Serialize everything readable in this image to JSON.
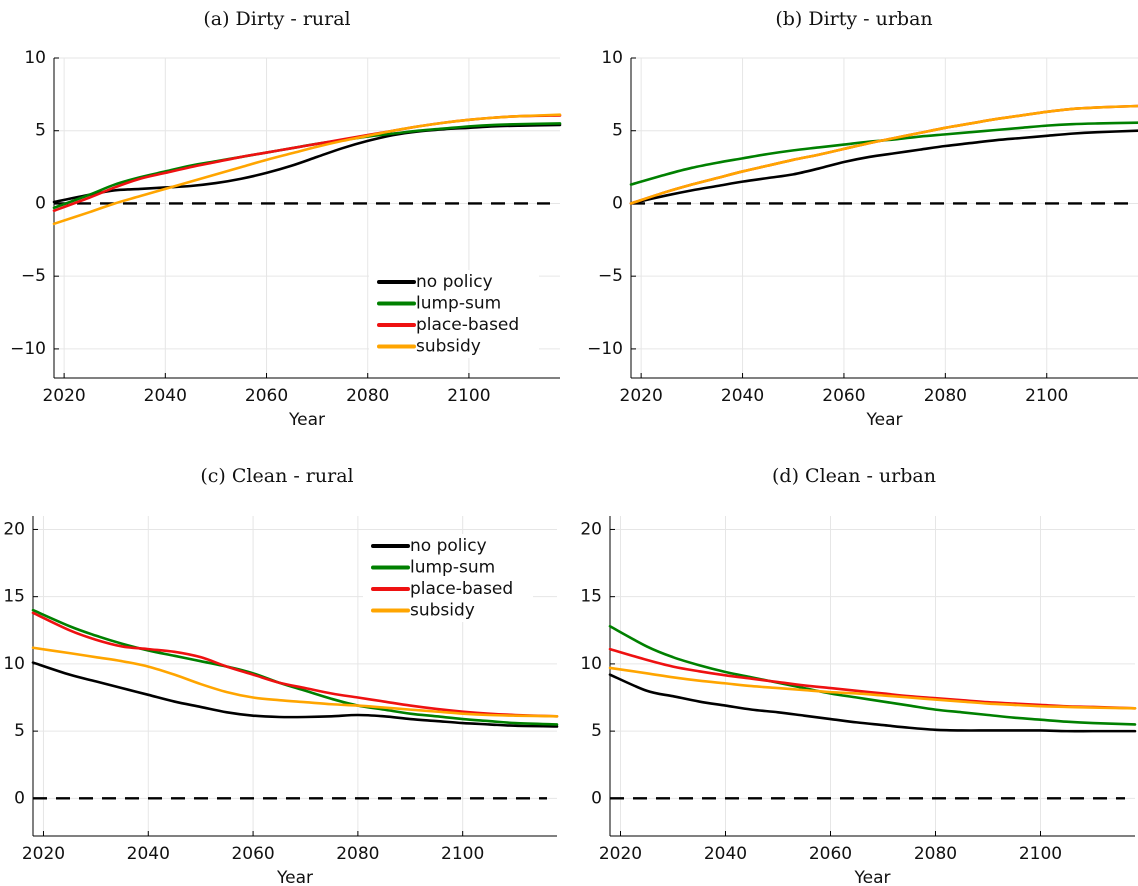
{
  "colors": {
    "no_policy": "#000000",
    "lump_sum": "#008000",
    "place_based": "#ee1111",
    "subsidy": "#ffa500"
  },
  "chart_data": [
    {
      "type": "line",
      "title": "(a) Dirty - rural",
      "xlabel": "Year",
      "ylabel": "",
      "xlim": [
        2018,
        2118
      ],
      "ylim": [
        -12,
        10
      ],
      "xticks": [
        2020,
        2040,
        2060,
        2080,
        2100
      ],
      "yticks": [
        -10,
        -5,
        0,
        5,
        10
      ],
      "grid": true,
      "legend": {
        "placement": "bottom-right",
        "entries": [
          "no policy",
          "lump-sum",
          "place-based",
          "subsidy"
        ]
      },
      "reference_line": {
        "y": 0,
        "style": "dashed"
      },
      "x": [
        2018,
        2025,
        2030,
        2035,
        2040,
        2045,
        2050,
        2055,
        2060,
        2065,
        2070,
        2075,
        2080,
        2085,
        2090,
        2095,
        2100,
        2105,
        2110,
        2118
      ],
      "series": [
        {
          "name": "no policy",
          "values": [
            0.1,
            0.6,
            0.9,
            1.0,
            1.1,
            1.2,
            1.4,
            1.7,
            2.1,
            2.6,
            3.2,
            3.8,
            4.3,
            4.7,
            4.95,
            5.1,
            5.2,
            5.3,
            5.35,
            5.4
          ]
        },
        {
          "name": "lump-sum",
          "values": [
            -0.3,
            0.6,
            1.3,
            1.8,
            2.2,
            2.6,
            2.9,
            3.2,
            3.5,
            3.8,
            4.1,
            4.35,
            4.6,
            4.8,
            5.0,
            5.15,
            5.3,
            5.4,
            5.45,
            5.5
          ]
        },
        {
          "name": "place-based",
          "values": [
            -0.5,
            0.4,
            1.1,
            1.7,
            2.1,
            2.5,
            2.85,
            3.2,
            3.5,
            3.8,
            4.1,
            4.4,
            4.7,
            5.0,
            5.3,
            5.55,
            5.75,
            5.9,
            6.0,
            6.05
          ]
        },
        {
          "name": "subsidy",
          "values": [
            -1.4,
            -0.6,
            0.0,
            0.5,
            1.0,
            1.5,
            2.0,
            2.5,
            3.0,
            3.45,
            3.9,
            4.3,
            4.65,
            5.0,
            5.3,
            5.55,
            5.75,
            5.9,
            6.0,
            6.1
          ]
        }
      ]
    },
    {
      "type": "line",
      "title": "(b) Dirty - urban",
      "xlabel": "Year",
      "ylabel": "",
      "xlim": [
        2018,
        2118
      ],
      "ylim": [
        -12,
        10
      ],
      "xticks": [
        2020,
        2040,
        2060,
        2080,
        2100
      ],
      "yticks": [
        -10,
        -5,
        0,
        5,
        10
      ],
      "grid": true,
      "legend": null,
      "reference_line": {
        "y": 0,
        "style": "dashed"
      },
      "x": [
        2018,
        2025,
        2030,
        2035,
        2040,
        2045,
        2050,
        2055,
        2060,
        2065,
        2070,
        2075,
        2080,
        2085,
        2090,
        2095,
        2100,
        2105,
        2110,
        2118
      ],
      "series": [
        {
          "name": "no policy",
          "values": [
            0.0,
            0.55,
            0.9,
            1.2,
            1.5,
            1.75,
            2.0,
            2.4,
            2.85,
            3.2,
            3.45,
            3.7,
            3.95,
            4.15,
            4.35,
            4.5,
            4.65,
            4.8,
            4.9,
            5.0
          ]
        },
        {
          "name": "lump-sum",
          "values": [
            1.3,
            2.0,
            2.45,
            2.8,
            3.1,
            3.4,
            3.65,
            3.85,
            4.05,
            4.25,
            4.4,
            4.6,
            4.75,
            4.9,
            5.05,
            5.2,
            5.35,
            5.45,
            5.5,
            5.55
          ]
        },
        {
          "name": "place-based",
          "values": [
            0.0,
            0.8,
            1.3,
            1.75,
            2.2,
            2.6,
            3.0,
            3.35,
            3.75,
            4.15,
            4.5,
            4.85,
            5.2,
            5.5,
            5.8,
            6.05,
            6.3,
            6.5,
            6.6,
            6.7
          ]
        },
        {
          "name": "subsidy",
          "values": [
            0.0,
            0.8,
            1.3,
            1.75,
            2.2,
            2.6,
            3.0,
            3.35,
            3.75,
            4.15,
            4.5,
            4.85,
            5.2,
            5.5,
            5.8,
            6.05,
            6.3,
            6.5,
            6.6,
            6.7
          ]
        }
      ]
    },
    {
      "type": "line",
      "title": "(c) Clean - rural",
      "xlabel": "Year",
      "ylabel": "",
      "xlim": [
        2018,
        2118
      ],
      "ylim": [
        -2.8,
        21
      ],
      "xticks": [
        2020,
        2040,
        2060,
        2080,
        2100
      ],
      "yticks": [
        0,
        5,
        10,
        15,
        20
      ],
      "grid": true,
      "legend": {
        "placement": "top-right",
        "entries": [
          "no policy",
          "lump-sum",
          "place-based",
          "subsidy"
        ]
      },
      "reference_line": {
        "y": 0,
        "style": "dashed"
      },
      "x": [
        2018,
        2025,
        2030,
        2035,
        2040,
        2045,
        2050,
        2055,
        2060,
        2065,
        2070,
        2075,
        2080,
        2085,
        2090,
        2095,
        2100,
        2105,
        2110,
        2118
      ],
      "series": [
        {
          "name": "no policy",
          "values": [
            10.1,
            9.2,
            8.7,
            8.2,
            7.7,
            7.2,
            6.8,
            6.4,
            6.15,
            6.05,
            6.05,
            6.1,
            6.2,
            6.1,
            5.9,
            5.75,
            5.6,
            5.5,
            5.4,
            5.35
          ]
        },
        {
          "name": "lump-sum",
          "values": [
            14.0,
            12.8,
            12.1,
            11.5,
            11.0,
            10.6,
            10.2,
            9.8,
            9.3,
            8.6,
            8.0,
            7.4,
            6.9,
            6.6,
            6.3,
            6.1,
            5.9,
            5.75,
            5.6,
            5.5
          ]
        },
        {
          "name": "place-based",
          "values": [
            13.8,
            12.5,
            11.8,
            11.3,
            11.1,
            10.9,
            10.5,
            9.8,
            9.2,
            8.6,
            8.2,
            7.8,
            7.5,
            7.2,
            6.9,
            6.65,
            6.45,
            6.3,
            6.2,
            6.1
          ]
        },
        {
          "name": "subsidy",
          "values": [
            11.2,
            10.8,
            10.5,
            10.2,
            9.8,
            9.2,
            8.5,
            7.9,
            7.5,
            7.3,
            7.15,
            7.0,
            6.9,
            6.75,
            6.6,
            6.45,
            6.3,
            6.2,
            6.15,
            6.1
          ]
        }
      ]
    },
    {
      "type": "line",
      "title": "(d) Clean - urban",
      "xlabel": "Year",
      "ylabel": "",
      "xlim": [
        2018,
        2118
      ],
      "ylim": [
        -2.8,
        21
      ],
      "xticks": [
        2020,
        2040,
        2060,
        2080,
        2100
      ],
      "yticks": [
        0,
        5,
        10,
        15,
        20
      ],
      "grid": true,
      "legend": null,
      "reference_line": {
        "y": 0,
        "style": "dashed"
      },
      "x": [
        2018,
        2025,
        2030,
        2035,
        2040,
        2045,
        2050,
        2055,
        2060,
        2065,
        2070,
        2075,
        2080,
        2085,
        2090,
        2095,
        2100,
        2105,
        2110,
        2118
      ],
      "series": [
        {
          "name": "no policy",
          "values": [
            9.2,
            8.0,
            7.6,
            7.2,
            6.9,
            6.6,
            6.4,
            6.15,
            5.9,
            5.65,
            5.45,
            5.25,
            5.1,
            5.05,
            5.05,
            5.05,
            5.05,
            5.0,
            5.0,
            5.0
          ]
        },
        {
          "name": "lump-sum",
          "values": [
            12.8,
            11.3,
            10.5,
            9.9,
            9.4,
            9.0,
            8.6,
            8.2,
            7.8,
            7.5,
            7.2,
            6.9,
            6.6,
            6.4,
            6.2,
            6.0,
            5.85,
            5.7,
            5.6,
            5.5
          ]
        },
        {
          "name": "place-based",
          "values": [
            11.1,
            10.3,
            9.8,
            9.45,
            9.15,
            8.9,
            8.65,
            8.4,
            8.2,
            8.0,
            7.8,
            7.6,
            7.45,
            7.3,
            7.15,
            7.05,
            6.95,
            6.85,
            6.8,
            6.7
          ]
        },
        {
          "name": "subsidy",
          "values": [
            9.7,
            9.3,
            9.0,
            8.75,
            8.55,
            8.35,
            8.2,
            8.05,
            7.9,
            7.8,
            7.65,
            7.5,
            7.35,
            7.2,
            7.05,
            6.95,
            6.85,
            6.8,
            6.75,
            6.7
          ]
        }
      ]
    }
  ]
}
